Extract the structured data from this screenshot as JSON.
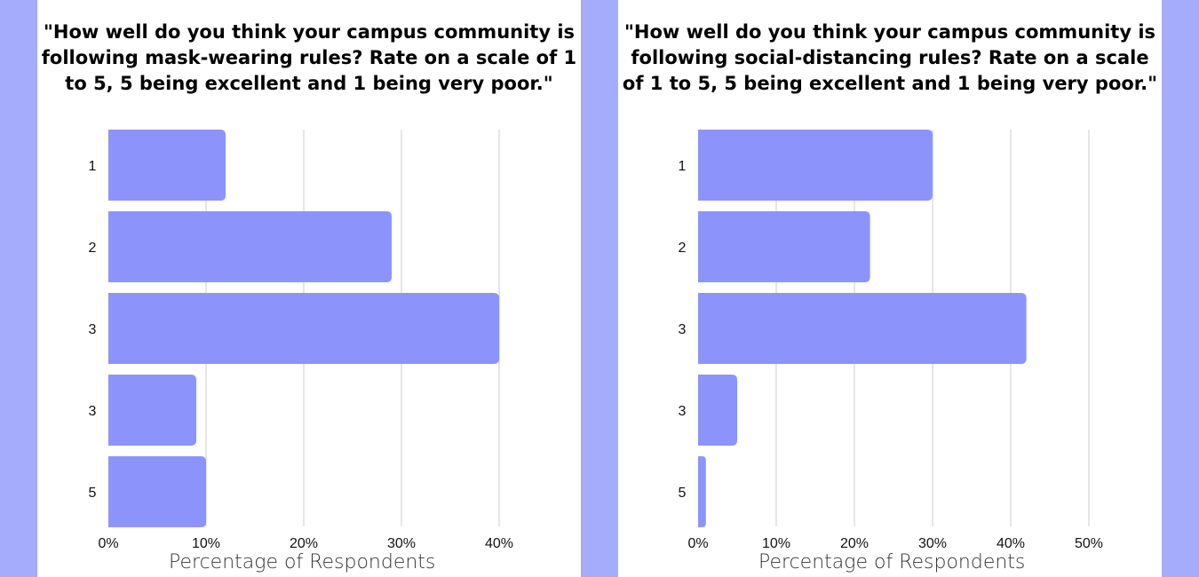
{
  "colors": {
    "bar": "#8c94fc",
    "grid": "#cccccc",
    "background": "#a5acfb",
    "panel": "#ffffff"
  },
  "chart_data": [
    {
      "type": "bar",
      "orientation": "horizontal",
      "title": "\"How well do you think your campus community is following mask-wearing rules? Rate on a scale of 1 to 5, 5 being excellent and 1 being very poor.\"",
      "categories": [
        "1",
        "2",
        "3",
        "3",
        "5"
      ],
      "values": [
        12,
        29,
        40,
        9,
        10
      ],
      "xlabel": "Percentage of Respondents",
      "ylabel": "",
      "xlim": [
        0,
        40
      ],
      "xticks": [
        "0%",
        "10%",
        "20%",
        "30%",
        "40%"
      ],
      "grid": true
    },
    {
      "type": "bar",
      "orientation": "horizontal",
      "title": "\"How well do you think your campus community is following social-distancing rules? Rate on a scale of 1 to 5, 5 being excellent and 1 being very poor.\"",
      "categories": [
        "1",
        "2",
        "3",
        "3",
        "5"
      ],
      "values": [
        30,
        22,
        42,
        5,
        1
      ],
      "xlabel": "Percentage of Respondents",
      "ylabel": "",
      "xlim": [
        0,
        50
      ],
      "xticks": [
        "0%",
        "10%",
        "20%",
        "30%",
        "40%",
        "50%"
      ],
      "grid": true
    }
  ]
}
